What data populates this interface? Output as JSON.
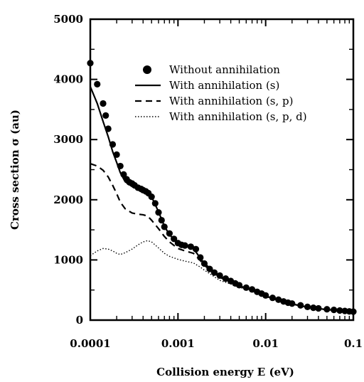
{
  "chart_data": {
    "type": "line",
    "title": "",
    "xlabel": "Collision energy E (eV)",
    "ylabel": "Cross section σ (au)",
    "xscale": "log",
    "xlim": [
      0.0001,
      0.1
    ],
    "ylim": [
      0,
      5000
    ],
    "x_ticks": [
      "0.0001",
      "0.001",
      "0.01",
      "0.1"
    ],
    "y_ticks": [
      "0",
      "1000",
      "2000",
      "3000",
      "4000",
      "5000"
    ],
    "legend_position": "top-right",
    "grid": false,
    "series": [
      {
        "name": "Without annihilation",
        "style": "markers",
        "color": "#000000",
        "points": [
          [
            0.0001,
            4270
          ],
          [
            0.00012,
            3920
          ],
          [
            0.00014,
            3600
          ],
          [
            0.00015,
            3400
          ],
          [
            0.00016,
            3180
          ],
          [
            0.00018,
            2920
          ],
          [
            0.0002,
            2750
          ],
          [
            0.00022,
            2560
          ],
          [
            0.00024,
            2420
          ],
          [
            0.00026,
            2340
          ],
          [
            0.00028,
            2290
          ],
          [
            0.0003,
            2270
          ],
          [
            0.00032,
            2240
          ],
          [
            0.00035,
            2200
          ],
          [
            0.00038,
            2180
          ],
          [
            0.0004,
            2160
          ],
          [
            0.00043,
            2140
          ],
          [
            0.00046,
            2110
          ],
          [
            0.0005,
            2050
          ],
          [
            0.00055,
            1940
          ],
          [
            0.0006,
            1790
          ],
          [
            0.00065,
            1660
          ],
          [
            0.0007,
            1550
          ],
          [
            0.0008,
            1440
          ],
          [
            0.0009,
            1350
          ],
          [
            0.001,
            1280
          ],
          [
            0.0011,
            1250
          ],
          [
            0.0012,
            1240
          ],
          [
            0.0014,
            1220
          ],
          [
            0.0016,
            1180
          ],
          [
            0.0018,
            1040
          ],
          [
            0.002,
            940
          ],
          [
            0.0023,
            850
          ],
          [
            0.0026,
            790
          ],
          [
            0.003,
            740
          ],
          [
            0.0035,
            690
          ],
          [
            0.004,
            650
          ],
          [
            0.0045,
            610
          ],
          [
            0.005,
            580
          ],
          [
            0.006,
            540
          ],
          [
            0.007,
            510
          ],
          [
            0.008,
            470
          ],
          [
            0.009,
            440
          ],
          [
            0.01,
            410
          ],
          [
            0.012,
            370
          ],
          [
            0.014,
            340
          ],
          [
            0.016,
            310
          ],
          [
            0.018,
            290
          ],
          [
            0.02,
            275
          ],
          [
            0.025,
            245
          ],
          [
            0.03,
            220
          ],
          [
            0.035,
            205
          ],
          [
            0.04,
            195
          ],
          [
            0.05,
            180
          ],
          [
            0.06,
            170
          ],
          [
            0.07,
            160
          ],
          [
            0.08,
            152
          ],
          [
            0.09,
            145
          ],
          [
            0.1,
            140
          ]
        ]
      },
      {
        "name": "With annihilation (s)",
        "style": "solid",
        "color": "#000000",
        "points": [
          [
            0.0001,
            3880
          ],
          [
            0.00012,
            3600
          ],
          [
            0.00014,
            3300
          ],
          [
            0.00016,
            3050
          ],
          [
            0.00018,
            2800
          ],
          [
            0.0002,
            2620
          ],
          [
            0.00022,
            2450
          ],
          [
            0.00025,
            2300
          ],
          [
            0.0003,
            2220
          ],
          [
            0.00035,
            2170
          ],
          [
            0.0004,
            2140
          ],
          [
            0.00045,
            2110
          ],
          [
            0.0005,
            2050
          ],
          [
            0.0006,
            1800
          ],
          [
            0.0007,
            1560
          ],
          [
            0.0008,
            1420
          ],
          [
            0.001,
            1270
          ],
          [
            0.0012,
            1230
          ],
          [
            0.0015,
            1190
          ],
          [
            0.0018,
            1030
          ],
          [
            0.002,
            940
          ],
          [
            0.003,
            730
          ],
          [
            0.004,
            640
          ],
          [
            0.005,
            570
          ],
          [
            0.007,
            500
          ],
          [
            0.01,
            400
          ],
          [
            0.015,
            320
          ],
          [
            0.02,
            270
          ],
          [
            0.03,
            215
          ],
          [
            0.05,
            175
          ],
          [
            0.07,
            155
          ],
          [
            0.1,
            135
          ]
        ]
      },
      {
        "name": "With annihilation (s, p)",
        "style": "dashed",
        "color": "#000000",
        "points": [
          [
            0.0001,
            2600
          ],
          [
            0.00012,
            2560
          ],
          [
            0.00014,
            2490
          ],
          [
            0.00016,
            2380
          ],
          [
            0.00018,
            2240
          ],
          [
            0.0002,
            2100
          ],
          [
            0.00022,
            1960
          ],
          [
            0.00025,
            1850
          ],
          [
            0.0003,
            1780
          ],
          [
            0.00035,
            1760
          ],
          [
            0.0004,
            1750
          ],
          [
            0.00045,
            1730
          ],
          [
            0.0005,
            1660
          ],
          [
            0.0006,
            1520
          ],
          [
            0.0007,
            1390
          ],
          [
            0.0008,
            1300
          ],
          [
            0.001,
            1190
          ],
          [
            0.0012,
            1150
          ],
          [
            0.0015,
            1110
          ],
          [
            0.0018,
            990
          ],
          [
            0.002,
            910
          ],
          [
            0.003,
            710
          ],
          [
            0.004,
            630
          ],
          [
            0.005,
            560
          ],
          [
            0.007,
            495
          ],
          [
            0.01,
            395
          ],
          [
            0.015,
            318
          ],
          [
            0.02,
            268
          ],
          [
            0.03,
            213
          ],
          [
            0.05,
            173
          ],
          [
            0.07,
            153
          ],
          [
            0.1,
            133
          ]
        ]
      },
      {
        "name": "With annihilation (s, p, d)",
        "style": "dotted",
        "color": "#000000",
        "points": [
          [
            0.0001,
            1070
          ],
          [
            0.00012,
            1150
          ],
          [
            0.00014,
            1190
          ],
          [
            0.00016,
            1180
          ],
          [
            0.00018,
            1150
          ],
          [
            0.0002,
            1110
          ],
          [
            0.00022,
            1090
          ],
          [
            0.00025,
            1120
          ],
          [
            0.0003,
            1180
          ],
          [
            0.00035,
            1250
          ],
          [
            0.0004,
            1300
          ],
          [
            0.00045,
            1320
          ],
          [
            0.0005,
            1300
          ],
          [
            0.0006,
            1200
          ],
          [
            0.0007,
            1110
          ],
          [
            0.0008,
            1060
          ],
          [
            0.001,
            1010
          ],
          [
            0.0012,
            980
          ],
          [
            0.0015,
            950
          ],
          [
            0.0018,
            880
          ],
          [
            0.002,
            830
          ],
          [
            0.003,
            660
          ],
          [
            0.004,
            600
          ],
          [
            0.005,
            545
          ],
          [
            0.007,
            485
          ],
          [
            0.01,
            390
          ],
          [
            0.015,
            315
          ],
          [
            0.02,
            265
          ],
          [
            0.03,
            212
          ],
          [
            0.05,
            172
          ],
          [
            0.07,
            152
          ],
          [
            0.1,
            132
          ]
        ]
      }
    ]
  }
}
